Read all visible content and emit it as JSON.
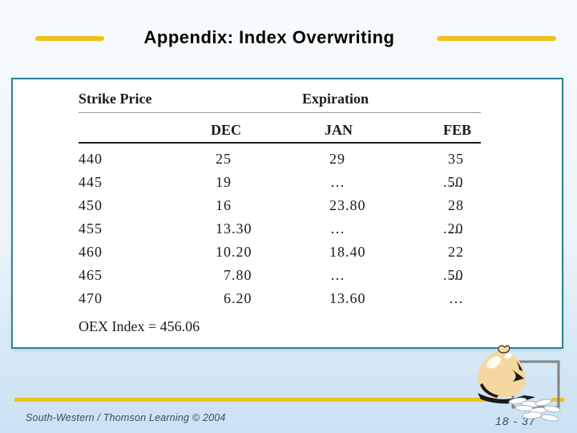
{
  "slide": {
    "title": "Appendix: Index Overwriting",
    "footer_credit": "South-Western / Thomson Learning © 2004",
    "page_number": "18 - 37"
  },
  "table": {
    "col1_header": "Strike Price",
    "group_header": "Expiration",
    "columns": [
      "DEC",
      "JAN",
      "FEB"
    ],
    "rows": [
      {
        "strike": "440",
        "dec": "25",
        "jan": "29",
        "feb": "35.50"
      },
      {
        "strike": "445",
        "dec": "19",
        "jan": "…",
        "feb": "…"
      },
      {
        "strike": "450",
        "dec": "16",
        "jan": "23.80",
        "feb": "28.20"
      },
      {
        "strike": "455",
        "dec": "13.30",
        "jan": "…",
        "feb": "…"
      },
      {
        "strike": "460",
        "dec": "10.20",
        "jan": "18.40",
        "feb": "22.50"
      },
      {
        "strike": "465",
        "dec": "7.80",
        "jan": "…",
        "feb": "…"
      },
      {
        "strike": "470",
        "dec": "6.20",
        "jan": "13.60",
        "feb": "…"
      }
    ],
    "note": "OEX Index = 456.06"
  },
  "icons": {
    "clipart": "money-bag-icon"
  },
  "colors": {
    "accent_gold": "#F0C119",
    "table_border": "#2C8196",
    "title_text": "#000000",
    "footer_text": "#3D4C58",
    "bg_top": "#F8FBFD",
    "bg_bottom": "#CBE2F3"
  }
}
